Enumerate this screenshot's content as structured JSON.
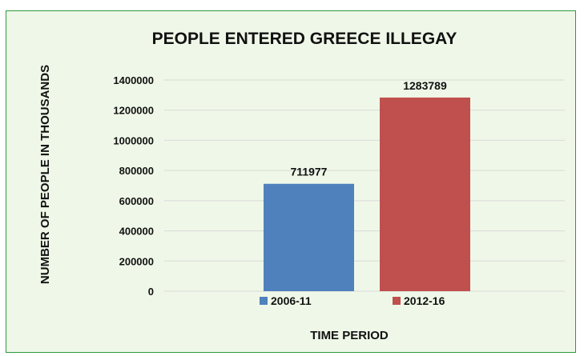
{
  "chart_data": {
    "type": "bar",
    "title": "PEOPLE ENTERED GREECE ILLEGAY",
    "xlabel": "TIME PERIOD",
    "ylabel": "NUMBER OF PEOPLE IN THOUSANDS",
    "categories": [
      "2006-11",
      "2012-16"
    ],
    "values": [
      711977,
      1283789
    ],
    "data_labels": [
      "711977",
      "1283789"
    ],
    "colors": [
      "#4f81bd",
      "#c0504d"
    ],
    "ylim": [
      0,
      1400000
    ],
    "yticks": [
      0,
      200000,
      400000,
      600000,
      800000,
      1000000,
      1200000,
      1400000
    ],
    "ytick_labels": [
      "0",
      "200000",
      "400000",
      "600000",
      "800000",
      "1000000",
      "1200000",
      "1400000"
    ],
    "grid": true,
    "legend": {
      "position": "bottom",
      "entries": [
        "2006-11",
        "2012-16"
      ]
    }
  }
}
